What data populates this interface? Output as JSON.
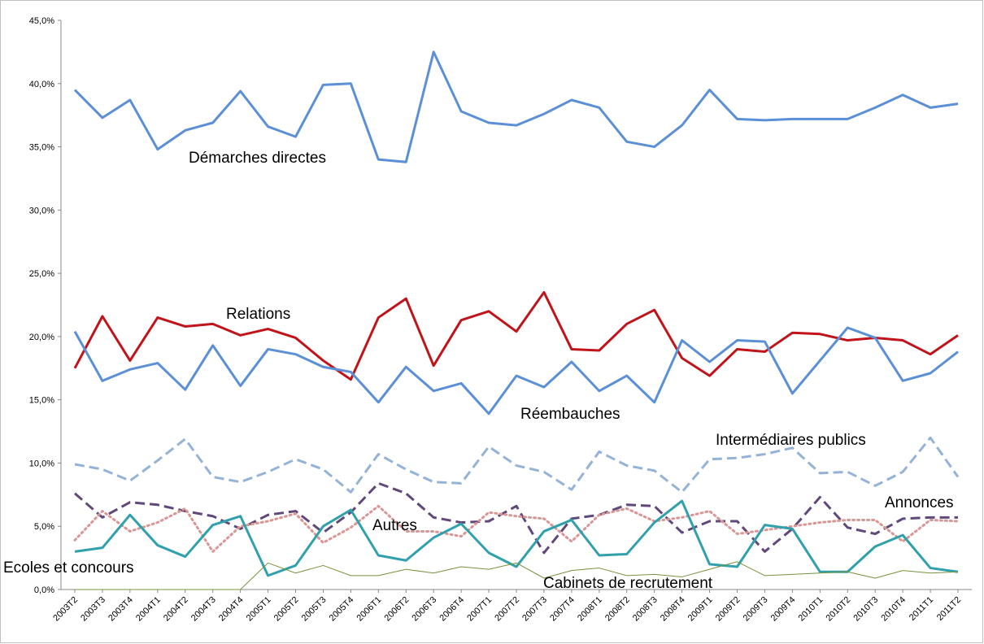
{
  "chart_data": {
    "type": "line",
    "categories": [
      "2003T2",
      "2003T3",
      "2003T4",
      "2004T1",
      "2004T2",
      "2004T3",
      "2004T4",
      "2005T1",
      "2005T2",
      "2005T3",
      "2005T4",
      "2006T1",
      "2006T2",
      "2006T3",
      "2006T4",
      "2007T1",
      "2007T2",
      "2007T3",
      "2007T4",
      "2008T1",
      "2008T2",
      "2008T3",
      "2008T4",
      "2009T1",
      "2009T2",
      "2009T3",
      "2009T4",
      "2010T1",
      "2010T2",
      "2010T3",
      "2010T4",
      "2011T1",
      "2011T2"
    ],
    "ylim": [
      0,
      45
    ],
    "yticks": [
      {
        "value": 0,
        "label": "0,0%"
      },
      {
        "value": 5,
        "label": "5,0%"
      },
      {
        "value": 10,
        "label": "10,0%"
      },
      {
        "value": 15,
        "label": "15,0%"
      },
      {
        "value": 20,
        "label": "20,0%"
      },
      {
        "value": 25,
        "label": "25,0%"
      },
      {
        "value": 30,
        "label": "30,0%"
      },
      {
        "value": 35,
        "label": "35,0%"
      },
      {
        "value": 40,
        "label": "40,0%"
      },
      {
        "value": 45,
        "label": "45,0%"
      }
    ],
    "grid": false,
    "series": [
      {
        "name": "Démarches directes",
        "color": "#5b8fd6",
        "line_style": "solid",
        "values": [
          39.5,
          37.3,
          38.7,
          34.8,
          36.3,
          36.9,
          39.4,
          36.6,
          35.8,
          39.9,
          40.0,
          34.0,
          33.8,
          42.5,
          37.8,
          36.9,
          36.7,
          37.6,
          38.7,
          38.1,
          35.4,
          35.0,
          36.7,
          39.5,
          37.2,
          37.1,
          37.2,
          37.2,
          37.2,
          38.1,
          39.1,
          38.1,
          38.4
        ]
      },
      {
        "name": "Relations",
        "color": "#c0141a",
        "line_style": "solid",
        "values": [
          17.5,
          21.6,
          18.1,
          21.5,
          20.8,
          21.0,
          20.1,
          20.6,
          19.9,
          18.1,
          16.6,
          21.5,
          23.0,
          17.7,
          21.3,
          22.0,
          20.4,
          23.5,
          19.0,
          18.9,
          21.0,
          22.1,
          18.3,
          16.9,
          19.0,
          18.8,
          20.3,
          20.2,
          19.7,
          19.9,
          19.7,
          18.6,
          20.1
        ]
      },
      {
        "name": "Réembauches",
        "color": "#5b8fd6",
        "line_style": "solid",
        "values": [
          20.4,
          16.5,
          17.4,
          17.9,
          15.8,
          19.3,
          16.1,
          19.0,
          18.6,
          17.6,
          17.2,
          14.8,
          17.6,
          15.7,
          16.3,
          13.9,
          16.9,
          16.0,
          18.0,
          15.7,
          16.9,
          14.8,
          19.7,
          18.0,
          19.7,
          19.6,
          15.5,
          18.1,
          20.7,
          19.9,
          16.5,
          17.1,
          18.8
        ]
      },
      {
        "name": "Intermédiaires publics",
        "color": "#95b3d7",
        "line_style": "dashed",
        "values": [
          9.9,
          9.5,
          8.6,
          10.2,
          11.9,
          8.9,
          8.5,
          9.3,
          10.3,
          9.5,
          7.7,
          10.7,
          9.5,
          8.5,
          8.4,
          11.3,
          9.8,
          9.3,
          7.9,
          10.9,
          9.8,
          9.4,
          7.7,
          10.3,
          10.4,
          10.7,
          11.2,
          9.2,
          9.3,
          8.2,
          9.3,
          12.0,
          8.9
        ]
      },
      {
        "name": "Annonces",
        "color": "#60497a",
        "line_style": "dashed",
        "values": [
          7.6,
          5.7,
          6.9,
          6.7,
          6.2,
          5.8,
          4.8,
          5.9,
          6.2,
          4.5,
          6.1,
          8.4,
          7.6,
          5.7,
          5.3,
          5.4,
          6.6,
          2.9,
          5.6,
          5.9,
          6.7,
          6.6,
          4.5,
          5.4,
          5.4,
          3.0,
          4.8,
          7.3,
          4.9,
          4.4,
          5.6,
          5.7,
          5.7
        ]
      },
      {
        "name": "Autres",
        "color": "#d99694",
        "line_style": "dotted",
        "values": [
          3.9,
          6.2,
          4.6,
          5.3,
          6.4,
          3.0,
          5.0,
          5.4,
          6.0,
          3.7,
          4.9,
          6.6,
          4.6,
          4.6,
          4.2,
          6.1,
          5.8,
          5.6,
          3.8,
          5.9,
          6.4,
          5.4,
          5.7,
          6.2,
          4.4,
          4.7,
          5.0,
          5.3,
          5.5,
          5.5,
          3.8,
          5.5,
          5.4
        ]
      },
      {
        "name": "Ecoles et concours",
        "color": "#31a0ad",
        "line_style": "solid",
        "values": [
          3.0,
          3.3,
          5.9,
          3.5,
          2.6,
          5.1,
          5.8,
          1.1,
          1.9,
          5.0,
          6.3,
          2.7,
          2.3,
          4.1,
          5.2,
          2.9,
          1.8,
          4.6,
          5.5,
          2.7,
          2.8,
          5.3,
          7.0,
          2.0,
          1.8,
          5.1,
          4.8,
          1.4,
          1.4,
          3.4,
          4.3,
          1.7,
          1.4
        ]
      },
      {
        "name": "Cabinets de recrutement",
        "color": "#77933c",
        "line_style": "solid",
        "values": [
          0,
          0,
          0,
          0,
          0,
          0,
          0,
          2.1,
          1.3,
          1.9,
          1.1,
          1.1,
          1.6,
          1.3,
          1.8,
          1.6,
          2.1,
          0.9,
          1.5,
          1.7,
          1.1,
          1.2,
          1.0,
          1.6,
          2.2,
          1.1,
          1.2,
          1.3,
          1.4,
          0.9,
          1.5,
          1.3,
          1.4
        ]
      }
    ]
  }
}
